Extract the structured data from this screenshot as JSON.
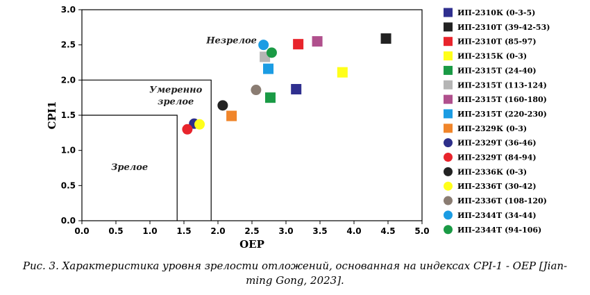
{
  "chart_data": {
    "type": "scatter",
    "xlabel": "OEP",
    "ylabel": "CPI1",
    "xlim": [
      0.0,
      5.0
    ],
    "ylim": [
      0.0,
      3.0
    ],
    "x_ticks": [
      "0.0",
      "0.5",
      "1.0",
      "1.5",
      "2.0",
      "2.5",
      "3.0",
      "3.5",
      "4.0",
      "4.5",
      "5.0"
    ],
    "y_ticks": [
      "0.0",
      "0.5",
      "1.0",
      "1.5",
      "2.0",
      "2.5",
      "3.0"
    ],
    "grid": false,
    "legend_position": "right",
    "zones": [
      {
        "name": "Зрелое",
        "x_max": 1.4,
        "y_max": 1.5,
        "label_lines": [
          "Зрелое"
        ],
        "label_x": 0.7,
        "label_y": 0.72
      },
      {
        "name": "Умеренно зрелое",
        "x_max": 1.9,
        "y_max": 2.0,
        "label_lines": [
          "Умеренно",
          "зрелое"
        ],
        "label_x": 1.38,
        "label_y": 1.82
      },
      {
        "name": "Незрелое",
        "x_max": 5.0,
        "y_max": 3.0,
        "label_lines": [
          "Незрелое"
        ],
        "label_x": 2.2,
        "label_y": 2.52
      }
    ],
    "series": [
      {
        "name": "ИП-2310К (0-3-5)",
        "marker": "square",
        "color": "#2f2f8f",
        "x": 3.15,
        "y": 1.87
      },
      {
        "name": "ИП-2310Т (39-42-53)",
        "marker": "square",
        "color": "#222222",
        "x": 4.47,
        "y": 2.59
      },
      {
        "name": "ИП-2310Т (85-97)",
        "marker": "square",
        "color": "#e8242c",
        "x": 3.18,
        "y": 2.51
      },
      {
        "name": "ИП-2315К (0-3)",
        "marker": "square",
        "color": "#ffff1a",
        "x": 3.83,
        "y": 2.11
      },
      {
        "name": "ИП-2315Т (24-40)",
        "marker": "square",
        "color": "#1a9a45",
        "x": 2.77,
        "y": 1.75
      },
      {
        "name": "ИП-2315Т (113-124)",
        "marker": "square",
        "color": "#b5b5b5",
        "x": 2.69,
        "y": 2.33
      },
      {
        "name": "ИП-2315Т (160-180)",
        "marker": "square",
        "color": "#b0508d",
        "x": 3.46,
        "y": 2.55
      },
      {
        "name": "ИП-2315Т (220-230)",
        "marker": "square",
        "color": "#1b9ce3",
        "x": 2.74,
        "y": 2.16
      },
      {
        "name": "ИП-2329К (0-3)",
        "marker": "square",
        "color": "#f0852a",
        "x": 2.2,
        "y": 1.49
      },
      {
        "name": "ИП-2329Т (36-46)",
        "marker": "circle",
        "color": "#2d2f8a",
        "x": 1.65,
        "y": 1.38
      },
      {
        "name": "ИП-2329Т (84-94)",
        "marker": "circle",
        "color": "#e8242c",
        "x": 1.55,
        "y": 1.3
      },
      {
        "name": "ИП-2336К (0-3)",
        "marker": "circle",
        "color": "#222222",
        "x": 2.07,
        "y": 1.64
      },
      {
        "name": "ИП-2336Т (30-42)",
        "marker": "circle",
        "color": "#ffff1a",
        "x": 1.73,
        "y": 1.37
      },
      {
        "name": "ИП-2336Т (108-120)",
        "marker": "circle",
        "color": "#8a7c72",
        "x": 2.56,
        "y": 1.86
      },
      {
        "name": "ИП-2344Т (34-44)",
        "marker": "circle",
        "color": "#1b9ce3",
        "x": 2.67,
        "y": 2.5
      },
      {
        "name": "ИП-2344Т (94-106)",
        "marker": "circle",
        "color": "#1a9a45",
        "x": 2.79,
        "y": 2.39
      }
    ]
  },
  "caption": {
    "line1": "Рис. 3. Характеристика уровня зрелости отложений, основанная на индексах  CPI-1 - OEP [Jian-",
    "line2": "ming Gong, 2023]."
  }
}
